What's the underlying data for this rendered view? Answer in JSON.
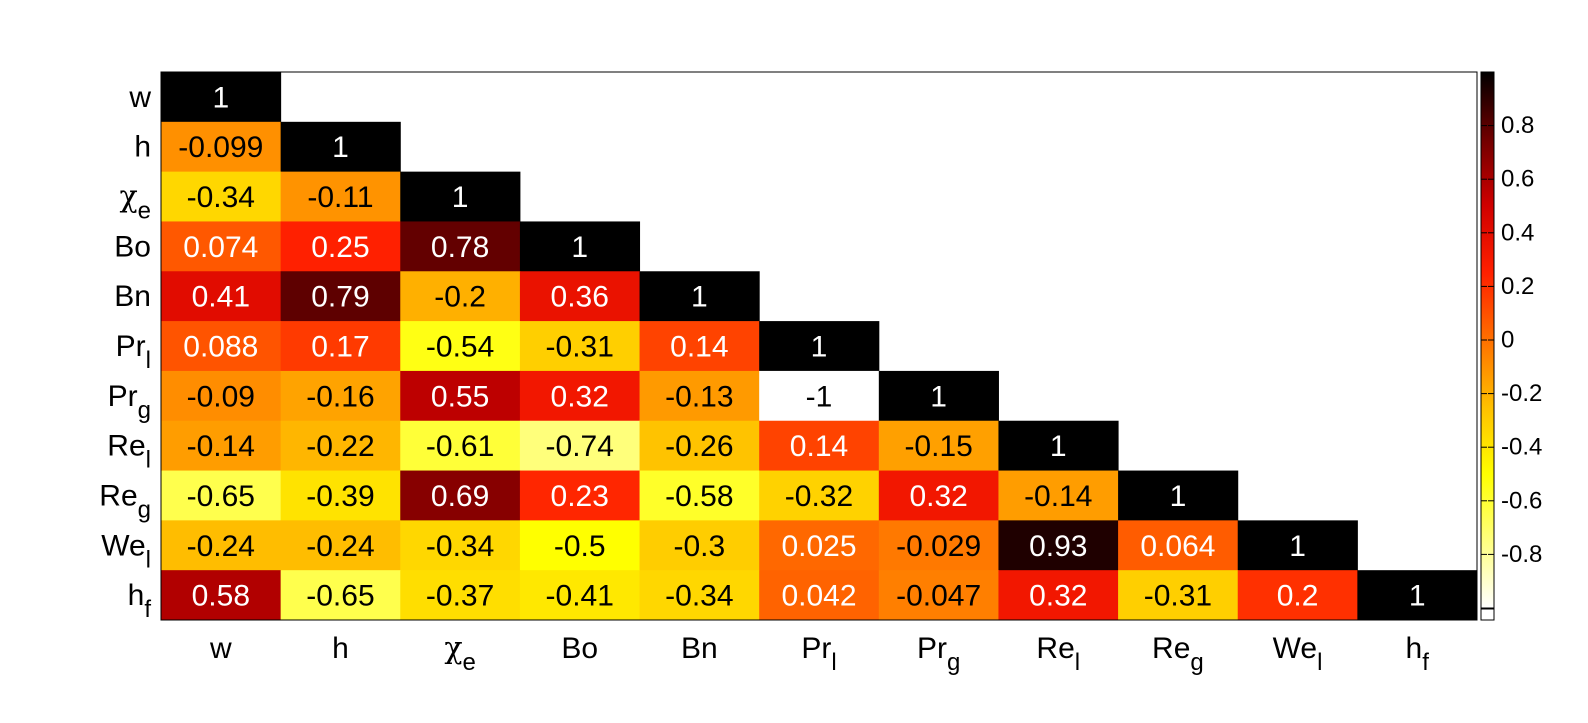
{
  "chart_data": {
    "type": "heatmap",
    "title": "",
    "xlabel": "",
    "ylabel": "",
    "labels": [
      {
        "base": "w",
        "sub": ""
      },
      {
        "base": "h",
        "sub": ""
      },
      {
        "base": "χ",
        "sub": "e"
      },
      {
        "base": "Bo",
        "sub": ""
      },
      {
        "base": "Bn",
        "sub": ""
      },
      {
        "base": "Pr",
        "sub": "l"
      },
      {
        "base": "Pr",
        "sub": "g"
      },
      {
        "base": "Re",
        "sub": "l"
      },
      {
        "base": "Re",
        "sub": "g"
      },
      {
        "base": "We",
        "sub": "l"
      },
      {
        "base": "h",
        "sub": "f"
      }
    ],
    "matrix": [
      [
        1
      ],
      [
        -0.099,
        1
      ],
      [
        -0.34,
        -0.11,
        1
      ],
      [
        0.074,
        0.25,
        0.78,
        1
      ],
      [
        0.41,
        0.79,
        -0.2,
        0.36,
        1
      ],
      [
        0.088,
        0.17,
        -0.54,
        -0.31,
        0.14,
        1
      ],
      [
        -0.09,
        -0.16,
        0.55,
        0.32,
        -0.13,
        -1,
        1
      ],
      [
        -0.14,
        -0.22,
        -0.61,
        -0.74,
        -0.26,
        0.14,
        -0.15,
        1
      ],
      [
        -0.65,
        -0.39,
        0.69,
        0.23,
        -0.58,
        -0.32,
        0.32,
        -0.14,
        1
      ],
      [
        -0.24,
        -0.24,
        -0.34,
        -0.5,
        -0.3,
        0.025,
        -0.029,
        0.93,
        0.064,
        1
      ],
      [
        0.58,
        -0.65,
        -0.37,
        -0.41,
        -0.34,
        0.042,
        -0.047,
        0.32,
        -0.31,
        0.2,
        1
      ]
    ],
    "colorbar": {
      "colormap": "hot",
      "range": [
        -1,
        1
      ],
      "ticks": [
        0.8,
        0.6,
        0.4,
        0.2,
        0,
        -0.2,
        -0.4,
        -0.6,
        -0.8
      ],
      "tick_labels": [
        "0.8",
        "0.6",
        "0.4",
        "0.2",
        "0",
        "-0.2",
        "-0.4",
        "-0.6",
        "-0.8"
      ]
    },
    "grid": false,
    "legend": "colorbar-right"
  }
}
